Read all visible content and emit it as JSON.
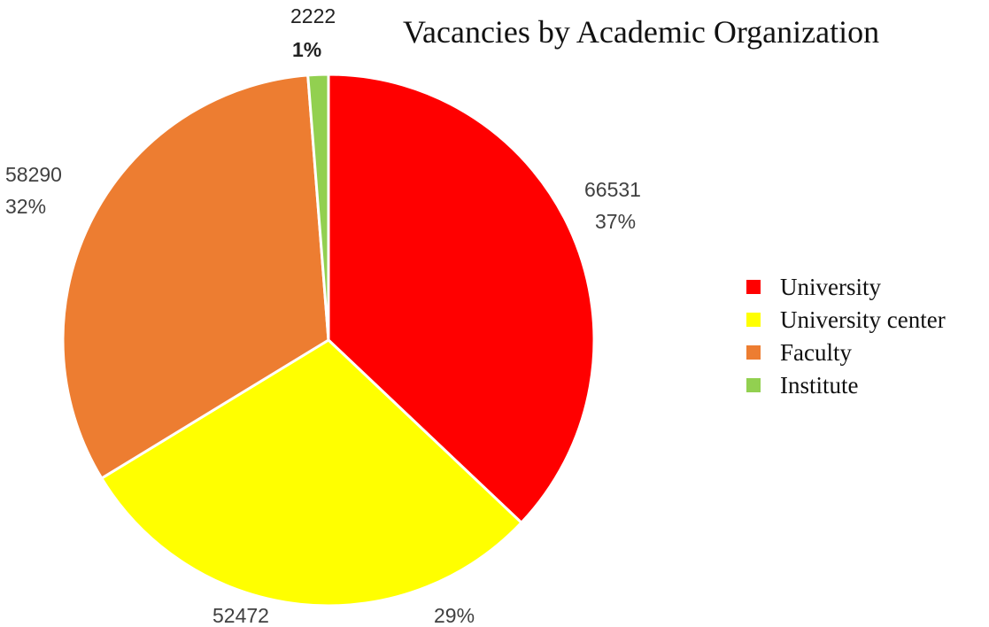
{
  "chart_data": {
    "type": "pie",
    "title": "Vacancies by Academic Organization",
    "legend_position": "right",
    "categories": [
      "University",
      "University center",
      "Faculty",
      "Institute"
    ],
    "values": [
      66531,
      52472,
      58290,
      2222
    ],
    "value_labels": [
      "66531",
      "52472",
      "58290",
      "2222"
    ],
    "percent_labels": [
      "37%",
      "29%",
      "32%",
      "1%"
    ],
    "colors": [
      "#ff0000",
      "#ffff00",
      "#ed7d31",
      "#92d050"
    ]
  }
}
